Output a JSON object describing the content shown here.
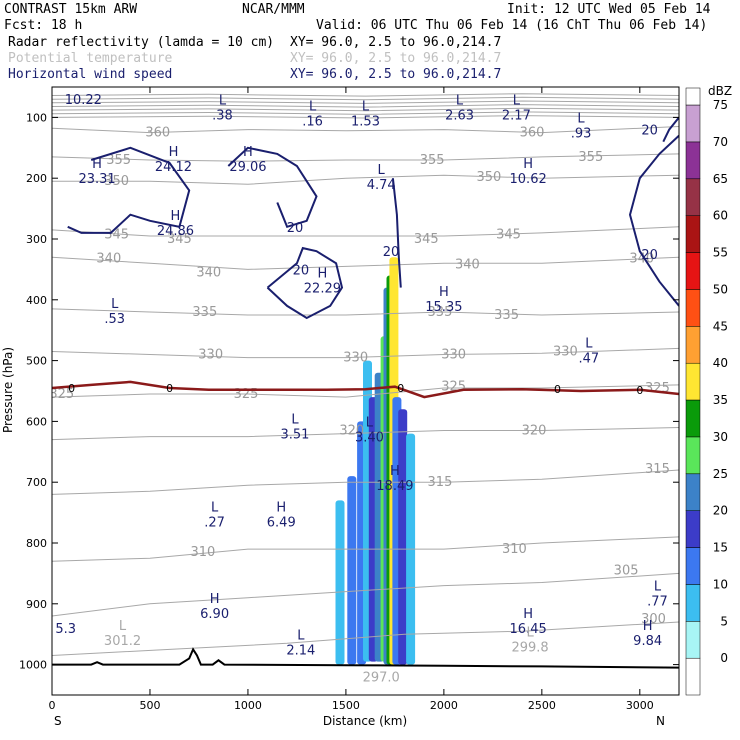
{
  "header": {
    "line1_left": "CONTRAST 15km ARW",
    "line1_mid": "NCAR/MMM",
    "line1_right": "Init: 12 UTC Wed 05 Feb 14",
    "line2_left": "Fcst:    18 h",
    "line2_right": "Valid: 06 UTC Thu 06 Feb 14 (16 ChT Thu 06 Feb 14)",
    "field1": "Radar reflectivity (lamda = 10 cm)",
    "field2": "Potential temperature",
    "field3": "Horizontal wind speed",
    "xy1": "XY=  96.0,  2.5 to  96.0,214.7",
    "xy2": "XY=  96.0,  2.5 to  96.0,214.7",
    "xy3": "XY=  96.0,  2.5 to  96.0,214.7"
  },
  "colors": {
    "wind": "#1a1f6e",
    "theta": "#a8a8a8",
    "freezing": "#8b1a1a",
    "ground": "#000000"
  },
  "chart_data": {
    "type": "cross-section",
    "xlabel": "Distance (km)",
    "ylabel": "Pressure (hPa)",
    "xlim": [
      0,
      3200
    ],
    "ylim": [
      1050,
      50
    ],
    "x_ticks": [
      "0",
      "500",
      "1000",
      "1500",
      "2000",
      "2500",
      "3000"
    ],
    "y_ticks": [
      "100",
      "200",
      "300",
      "400",
      "500",
      "600",
      "700",
      "800",
      "900",
      "1000"
    ],
    "x_ends": [
      "S",
      "N"
    ],
    "colorbar": {
      "unit": "dBZ",
      "levels": [
        "0",
        "5",
        "10",
        "15",
        "20",
        "25",
        "30",
        "35",
        "40",
        "45",
        "50",
        "55",
        "60",
        "65",
        "70",
        "75"
      ],
      "colors": [
        "#ffffff",
        "#a8f5f5",
        "#3cbef0",
        "#3c78f0",
        "#3c3cc8",
        "#3c82c8",
        "#5ae65a",
        "#0a9b0a",
        "#ffe632",
        "#ffa032",
        "#ff5014",
        "#e61414",
        "#aa1414",
        "#963246",
        "#8c3296",
        "#c8a0d2"
      ]
    },
    "reflectivity_columns": [
      {
        "x": 1470,
        "top": 730,
        "bottom": 1000,
        "dbz": 10
      },
      {
        "x": 1530,
        "top": 690,
        "bottom": 1000,
        "dbz": 15
      },
      {
        "x": 1580,
        "top": 600,
        "bottom": 1000,
        "dbz": 15
      },
      {
        "x": 1610,
        "top": 500,
        "bottom": 995,
        "dbz": 10
      },
      {
        "x": 1640,
        "top": 560,
        "bottom": 995,
        "dbz": 20
      },
      {
        "x": 1670,
        "top": 520,
        "bottom": 995,
        "dbz": 25
      },
      {
        "x": 1700,
        "top": 460,
        "bottom": 995,
        "dbz": 30
      },
      {
        "x": 1715,
        "top": 380,
        "bottom": 1000,
        "dbz": 25
      },
      {
        "x": 1730,
        "top": 360,
        "bottom": 1000,
        "dbz": 35
      },
      {
        "x": 1745,
        "top": 330,
        "bottom": 1000,
        "dbz": 40
      },
      {
        "x": 1760,
        "top": 560,
        "bottom": 1000,
        "dbz": 15
      },
      {
        "x": 1790,
        "top": 580,
        "bottom": 1000,
        "dbz": 20
      },
      {
        "x": 1830,
        "top": 620,
        "bottom": 1000,
        "dbz": 10
      }
    ],
    "freezing_level": {
      "label": "0",
      "points": [
        [
          0,
          545
        ],
        [
          200,
          540
        ],
        [
          400,
          535
        ],
        [
          600,
          545
        ],
        [
          800,
          548
        ],
        [
          1000,
          548
        ],
        [
          1200,
          548
        ],
        [
          1400,
          548
        ],
        [
          1600,
          547
        ],
        [
          1750,
          543
        ],
        [
          1900,
          560
        ],
        [
          2100,
          548
        ],
        [
          2400,
          547
        ],
        [
          2700,
          550
        ],
        [
          3000,
          548
        ],
        [
          3200,
          555
        ]
      ]
    },
    "theta_contours": [
      {
        "label": "360",
        "labels_at": [
          [
            540,
            125
          ],
          [
            2450,
            125
          ]
        ],
        "points": [
          [
            0,
            118
          ],
          [
            500,
            125
          ],
          [
            1000,
            120
          ],
          [
            1500,
            122
          ],
          [
            2000,
            120
          ],
          [
            2500,
            125
          ],
          [
            3200,
            115
          ]
        ]
      },
      {
        "label": "355",
        "labels_at": [
          [
            340,
            170
          ],
          [
            1940,
            170
          ],
          [
            2750,
            165
          ]
        ],
        "points": [
          [
            0,
            165
          ],
          [
            500,
            170
          ],
          [
            1000,
            172
          ],
          [
            1500,
            170
          ],
          [
            2000,
            170
          ],
          [
            2500,
            165
          ],
          [
            3200,
            160
          ]
        ]
      },
      {
        "label": "350",
        "labels_at": [
          [
            330,
            205
          ],
          [
            2230,
            198
          ]
        ],
        "points": [
          [
            0,
            205
          ],
          [
            500,
            205
          ],
          [
            1000,
            210
          ],
          [
            1500,
            200
          ],
          [
            2000,
            195
          ],
          [
            2500,
            200
          ],
          [
            3200,
            195
          ]
        ]
      },
      {
        "label": "345",
        "labels_at": [
          [
            330,
            293
          ],
          [
            650,
            300
          ],
          [
            1910,
            300
          ],
          [
            2330,
            293
          ]
        ],
        "points": [
          [
            0,
            285
          ],
          [
            500,
            295
          ],
          [
            1000,
            295
          ],
          [
            1500,
            295
          ],
          [
            2000,
            295
          ],
          [
            2500,
            290
          ],
          [
            3200,
            280
          ]
        ]
      },
      {
        "label": "340",
        "labels_at": [
          [
            290,
            332
          ],
          [
            800,
            355
          ],
          [
            2120,
            342
          ],
          [
            3010,
            332
          ]
        ],
        "points": [
          [
            0,
            330
          ],
          [
            500,
            340
          ],
          [
            1000,
            350
          ],
          [
            1500,
            345
          ],
          [
            2000,
            340
          ],
          [
            2500,
            340
          ],
          [
            3200,
            330
          ]
        ]
      },
      {
        "label": "335",
        "labels_at": [
          [
            780,
            420
          ],
          [
            1980,
            420
          ],
          [
            2320,
            425
          ]
        ],
        "points": [
          [
            0,
            415
          ],
          [
            500,
            420
          ],
          [
            1000,
            425
          ],
          [
            1500,
            425
          ],
          [
            2000,
            420
          ],
          [
            2500,
            425
          ],
          [
            3200,
            420
          ]
        ]
      },
      {
        "label": "330",
        "labels_at": [
          [
            810,
            490
          ],
          [
            1550,
            495
          ],
          [
            2050,
            490
          ],
          [
            2620,
            485
          ]
        ],
        "points": [
          [
            0,
            485
          ],
          [
            500,
            490
          ],
          [
            1000,
            495
          ],
          [
            1500,
            495
          ],
          [
            2000,
            490
          ],
          [
            2500,
            488
          ],
          [
            3200,
            480
          ]
        ]
      },
      {
        "label": "325",
        "labels_at": [
          [
            50,
            555
          ],
          [
            990,
            555
          ],
          [
            2050,
            543
          ],
          [
            3090,
            545
          ]
        ],
        "points": [
          [
            0,
            560
          ],
          [
            500,
            555
          ],
          [
            1000,
            555
          ],
          [
            1500,
            560
          ],
          [
            2000,
            545
          ],
          [
            2500,
            545
          ],
          [
            3200,
            540
          ]
        ]
      },
      {
        "label": "320",
        "labels_at": [
          [
            1530,
            615
          ],
          [
            2460,
            615
          ]
        ],
        "points": [
          [
            0,
            630
          ],
          [
            500,
            625
          ],
          [
            1000,
            625
          ],
          [
            1500,
            620
          ],
          [
            2000,
            615
          ],
          [
            2500,
            615
          ],
          [
            3200,
            610
          ]
        ]
      },
      {
        "label": "315",
        "labels_at": [
          [
            1980,
            700
          ],
          [
            3090,
            678
          ]
        ],
        "points": [
          [
            0,
            720
          ],
          [
            500,
            715
          ],
          [
            1000,
            705
          ],
          [
            1500,
            700
          ],
          [
            2000,
            700
          ],
          [
            2500,
            695
          ],
          [
            3200,
            680
          ]
        ]
      },
      {
        "label": "310",
        "labels_at": [
          [
            770,
            815
          ],
          [
            2360,
            810
          ]
        ],
        "points": [
          [
            0,
            830
          ],
          [
            500,
            825
          ],
          [
            1000,
            810
          ],
          [
            1500,
            810
          ],
          [
            2000,
            810
          ],
          [
            2500,
            800
          ],
          [
            3200,
            790
          ]
        ]
      },
      {
        "label": "305",
        "labels_at": [
          [
            2930,
            845
          ]
        ],
        "points": [
          [
            0,
            920
          ],
          [
            500,
            900
          ],
          [
            1000,
            890
          ],
          [
            1500,
            880
          ],
          [
            2000,
            870
          ],
          [
            2500,
            865
          ],
          [
            3200,
            850
          ]
        ]
      },
      {
        "label": "300",
        "labels_at": [
          [
            3070,
            925
          ]
        ],
        "points": [
          [
            0,
            985
          ],
          [
            600,
            975
          ],
          [
            1200,
            965
          ],
          [
            1800,
            950
          ],
          [
            2400,
            945
          ],
          [
            3200,
            930
          ]
        ]
      }
    ],
    "theta_extrema": [
      {
        "kind": "L",
        "value": "301.2",
        "x": 360,
        "y": 950
      },
      {
        "kind": "L",
        "value": "299.8",
        "x": 2440,
        "y": 960
      },
      {
        "kind": "",
        "value": "297.0",
        "x": 1680,
        "y": 1010
      }
    ],
    "wind_contours": [
      {
        "label": "20",
        "label_at": [
          1270,
          350
        ],
        "points": [
          [
            1100,
            380
          ],
          [
            1250,
            340
          ],
          [
            1280,
            315
          ],
          [
            1350,
            320
          ],
          [
            1450,
            340
          ],
          [
            1480,
            380
          ],
          [
            1420,
            410
          ],
          [
            1300,
            430
          ],
          [
            1200,
            410
          ],
          [
            1100,
            380
          ]
        ]
      },
      {
        "label": "20",
        "label_at": [
          1730,
          320
        ],
        "points": [
          [
            1740,
            200
          ],
          [
            1760,
            260
          ],
          [
            1770,
            330
          ],
          [
            1780,
            380
          ]
        ]
      },
      {
        "label": "20",
        "label_at": [
          1240,
          280
        ],
        "points": [
          [
            900,
            180
          ],
          [
            1000,
            150
          ],
          [
            1150,
            160
          ],
          [
            1250,
            180
          ],
          [
            1350,
            230
          ],
          [
            1300,
            270
          ],
          [
            1200,
            280
          ],
          [
            1150,
            240
          ]
        ]
      },
      {
        "label": "",
        "label_at": [
          0,
          0
        ],
        "points": [
          [
            200,
            170
          ],
          [
            400,
            150
          ],
          [
            600,
            175
          ],
          [
            700,
            220
          ],
          [
            650,
            280
          ],
          [
            500,
            270
          ],
          [
            400,
            260
          ],
          [
            300,
            290
          ],
          [
            150,
            290
          ],
          [
            80,
            280
          ]
        ]
      },
      {
        "label": "20",
        "label_at": [
          3050,
          325
        ],
        "points": [
          [
            3200,
            130
          ],
          [
            3100,
            160
          ],
          [
            3000,
            200
          ],
          [
            2950,
            260
          ],
          [
            3000,
            320
          ],
          [
            3100,
            370
          ],
          [
            3200,
            410
          ]
        ]
      },
      {
        "label": "20",
        "label_at": [
          3050,
          120
        ],
        "points": [
          [
            3200,
            100
          ],
          [
            3150,
            120
          ],
          [
            3120,
            140
          ]
        ]
      }
    ],
    "wind_extrema": [
      {
        "kind": "",
        "value": "10.22",
        "x": 160,
        "y": 60
      },
      {
        "kind": "L",
        "value": ".38",
        "x": 870,
        "y": 85
      },
      {
        "kind": "L",
        "value": ".16",
        "x": 1330,
        "y": 95
      },
      {
        "kind": "L",
        "value": "1.53",
        "x": 1600,
        "y": 95
      },
      {
        "kind": "L",
        "value": "2.63",
        "x": 2080,
        "y": 85
      },
      {
        "kind": "L",
        "value": "2.17",
        "x": 2370,
        "y": 85
      },
      {
        "kind": "L",
        "value": ".93",
        "x": 2700,
        "y": 115
      },
      {
        "kind": "H",
        "value": "23.31",
        "x": 230,
        "y": 190
      },
      {
        "kind": "H",
        "value": "24.12",
        "x": 620,
        "y": 170
      },
      {
        "kind": "H",
        "value": "29.06",
        "x": 1000,
        "y": 170
      },
      {
        "kind": "L",
        "value": "4.74",
        "x": 1680,
        "y": 200
      },
      {
        "kind": "H",
        "value": "10.62",
        "x": 2430,
        "y": 190
      },
      {
        "kind": "H",
        "value": "24.86",
        "x": 630,
        "y": 275
      },
      {
        "kind": "H",
        "value": "22.29",
        "x": 1380,
        "y": 370
      },
      {
        "kind": "H",
        "value": "15.35",
        "x": 2000,
        "y": 400
      },
      {
        "kind": "L",
        "value": ".53",
        "x": 320,
        "y": 420
      },
      {
        "kind": "L",
        "value": ".47",
        "x": 2740,
        "y": 485
      },
      {
        "kind": "L",
        "value": "3.51",
        "x": 1240,
        "y": 610
      },
      {
        "kind": "L",
        "value": "3.40",
        "x": 1620,
        "y": 615
      },
      {
        "kind": "H",
        "value": "18.49",
        "x": 1750,
        "y": 695
      },
      {
        "kind": "L",
        "value": ".27",
        "x": 830,
        "y": 755
      },
      {
        "kind": "H",
        "value": "6.49",
        "x": 1170,
        "y": 755
      },
      {
        "kind": "H",
        "value": "6.90",
        "x": 830,
        "y": 905
      },
      {
        "kind": "L",
        "value": ".77",
        "x": 3090,
        "y": 885
      },
      {
        "kind": "",
        "value": "5.3",
        "x": 70,
        "y": 930
      },
      {
        "kind": "H",
        "value": "16.45",
        "x": 2430,
        "y": 930
      },
      {
        "kind": "H",
        "value": "9.84",
        "x": 3040,
        "y": 950
      },
      {
        "kind": "L",
        "value": "2.14",
        "x": 1270,
        "y": 965
      }
    ],
    "ground": [
      [
        0,
        1000
      ],
      [
        200,
        1000
      ],
      [
        230,
        996
      ],
      [
        260,
        1000
      ],
      [
        650,
        1000
      ],
      [
        700,
        990
      ],
      [
        720,
        975
      ],
      [
        740,
        985
      ],
      [
        760,
        1000
      ],
      [
        820,
        1000
      ],
      [
        850,
        993
      ],
      [
        880,
        1000
      ],
      [
        1500,
        1001
      ],
      [
        2000,
        1002
      ],
      [
        2500,
        1003
      ],
      [
        3200,
        1005
      ]
    ]
  }
}
